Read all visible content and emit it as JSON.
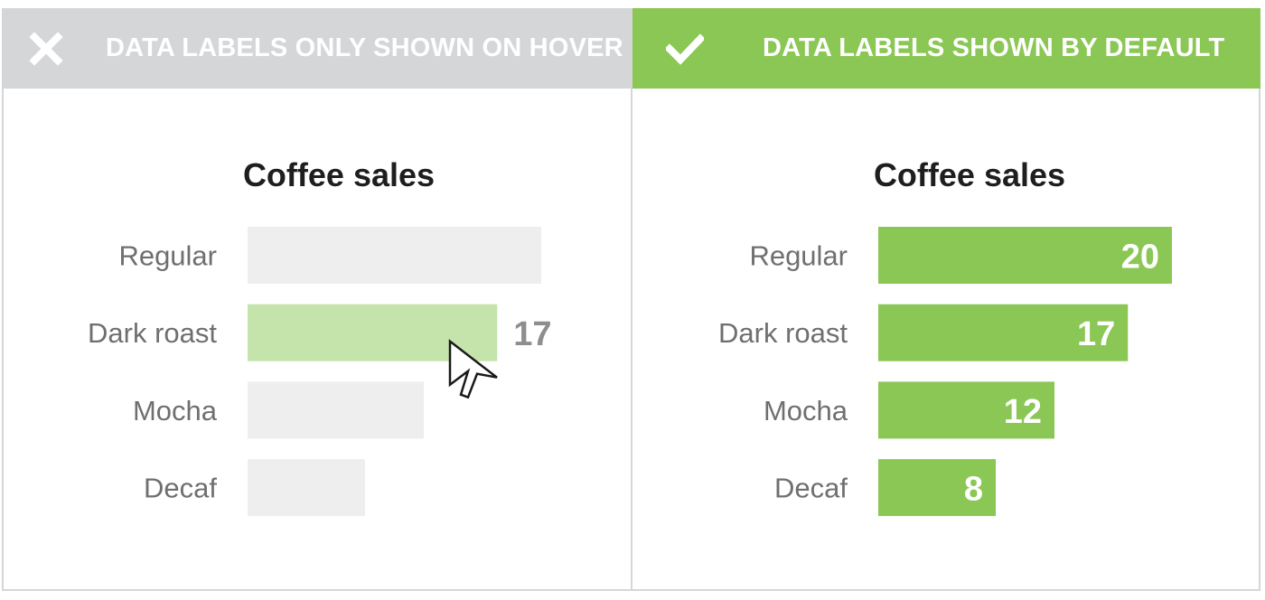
{
  "colors": {
    "bad_header": "#d5d6d8",
    "good_header": "#8bc755",
    "bar_muted": "#eeeeee",
    "bar_hover": "#c4e4ab",
    "bar_good": "#8bc755",
    "hover_value_text": "#8e8e8e"
  },
  "panels": {
    "bad": {
      "icon": "close-icon",
      "heading": "DATA LABELS ONLY SHOWN ON HOVER"
    },
    "good": {
      "icon": "check-icon",
      "heading": "DATA LABELS SHOWN BY DEFAULT"
    }
  },
  "cursor": {
    "icon": "mouse-pointer-icon"
  },
  "chart_data": [
    {
      "type": "bar",
      "orientation": "horizontal",
      "title": "Coffee sales",
      "categories": [
        "Regular",
        "Dark roast",
        "Mocha",
        "Decaf"
      ],
      "values": [
        20,
        17,
        12,
        8
      ],
      "data_labels": "hover-only",
      "hovered_index": 1,
      "shown_labels": [
        "",
        "17",
        "",
        ""
      ]
    },
    {
      "type": "bar",
      "orientation": "horizontal",
      "title": "Coffee sales",
      "categories": [
        "Regular",
        "Dark roast",
        "Mocha",
        "Decaf"
      ],
      "values": [
        20,
        17,
        12,
        8
      ],
      "data_labels": "always",
      "shown_labels": [
        "20",
        "17",
        "12",
        "8"
      ]
    }
  ]
}
